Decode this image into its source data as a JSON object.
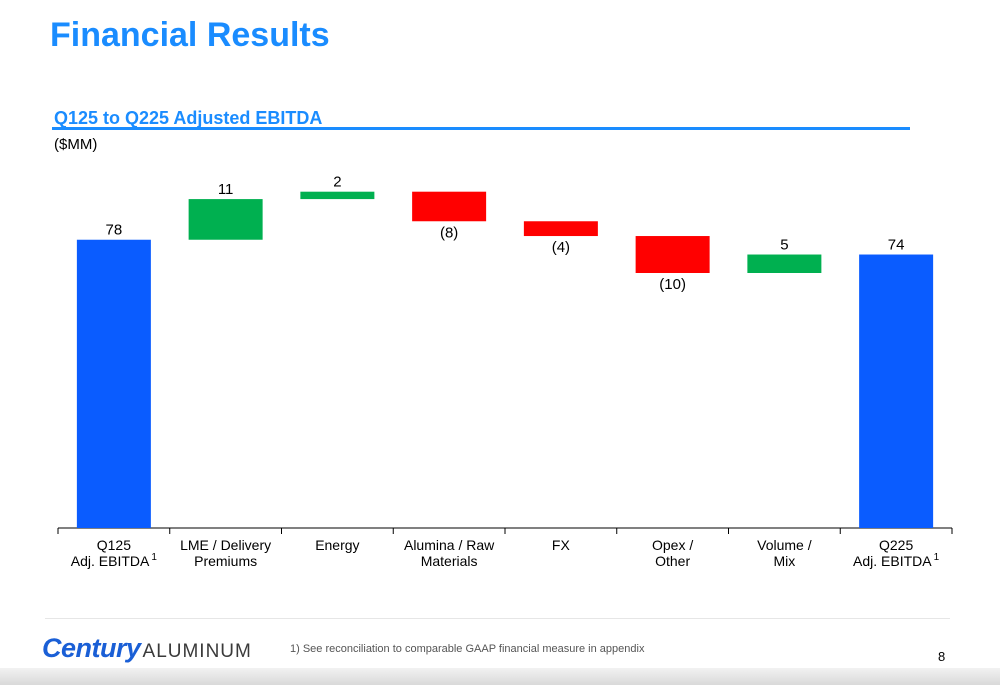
{
  "page": {
    "title": "Financial Results",
    "page_number": "8",
    "footnote": "1)   See reconciliation to comparable GAAP financial measure in appendix",
    "logo": {
      "brand": "Century",
      "sub": "ALUMINUM"
    }
  },
  "chart_data": {
    "type": "waterfall",
    "title": "Q125 to Q225 Adjusted EBITDA",
    "units": "($MM)",
    "categories": [
      [
        "Q125",
        "Adj. EBITDA"
      ],
      [
        "LME / Delivery",
        "Premiums"
      ],
      [
        "Energy"
      ],
      [
        "Alumina / Raw",
        "Materials"
      ],
      [
        "FX"
      ],
      [
        "Opex /",
        "Other"
      ],
      [
        "Volume /",
        "Mix"
      ],
      [
        "Q225",
        "Adj. EBITDA"
      ]
    ],
    "footnote_marks": [
      "1",
      "",
      "",
      "",
      "",
      "",
      "",
      "1"
    ],
    "steps": [
      {
        "kind": "total",
        "value": 78,
        "label": "78"
      },
      {
        "kind": "delta",
        "value": 11,
        "label": "11"
      },
      {
        "kind": "delta",
        "value": 2,
        "label": "2"
      },
      {
        "kind": "delta",
        "value": -8,
        "label": "(8)"
      },
      {
        "kind": "delta",
        "value": -4,
        "label": "(4)"
      },
      {
        "kind": "delta",
        "value": -10,
        "label": "(10)"
      },
      {
        "kind": "delta",
        "value": 5,
        "label": "5"
      },
      {
        "kind": "total",
        "value": 74,
        "label": "74"
      }
    ],
    "colors": {
      "total": "#0a5cff",
      "increase": "#00b050",
      "decrease": "#ff0000"
    },
    "ylim": [
      0,
      92
    ],
    "grid": false,
    "legend": "none"
  }
}
